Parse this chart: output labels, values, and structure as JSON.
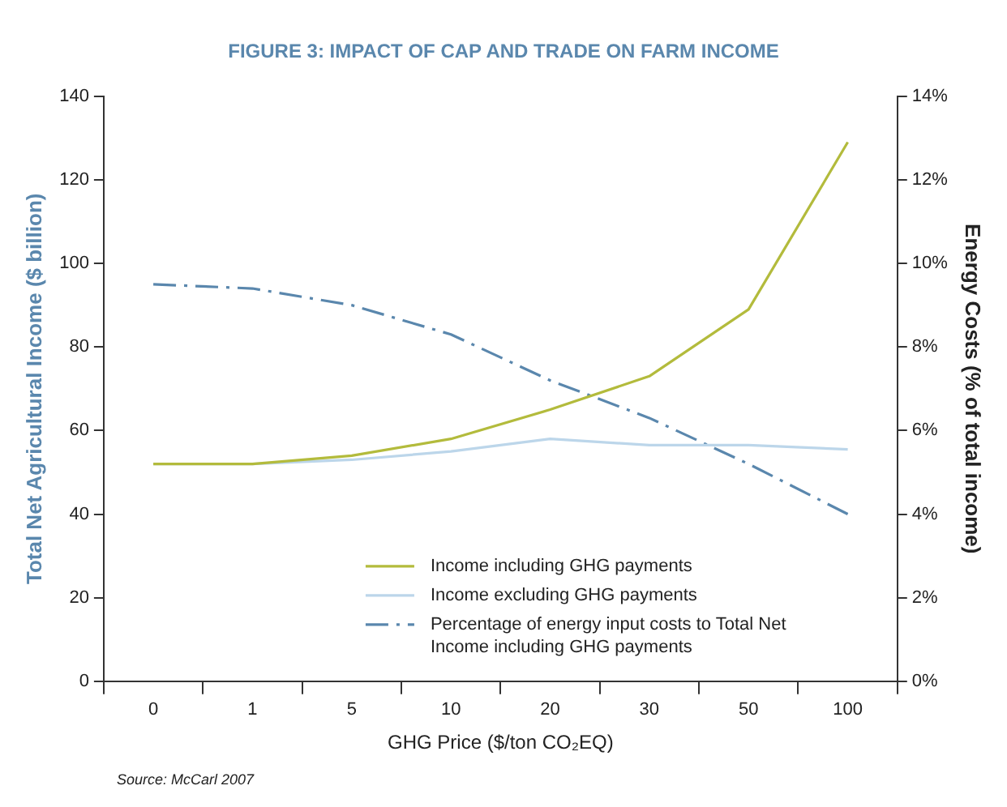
{
  "chart_data": {
    "type": "line",
    "title": "FIGURE 3: IMPACT OF CAP AND TRADE ON FARM INCOME",
    "xlabel": "GHG Price ($/ton CO₂EQ)",
    "ylabel": "Total Net Agricultural Income ($ billion)",
    "y2label": "Energy Costs (% of total income)",
    "categories": [
      "0",
      "1",
      "5",
      "10",
      "20",
      "30",
      "50",
      "100"
    ],
    "series": [
      {
        "name": "Income including GHG payments",
        "color": "#b3bb3c",
        "values": [
          52,
          52,
          54,
          58,
          65,
          73,
          89,
          129
        ]
      },
      {
        "name": "Income excluding GHG payments",
        "color": "#bcd6ea",
        "values": [
          52,
          52,
          53,
          55,
          58,
          56.5,
          56.5,
          55.5
        ]
      },
      {
        "name": "Percentage of energy input costs to Total Net Income including GHG payments",
        "color": "#5a87ad",
        "axis": "y2",
        "line_style": "dashed",
        "values": [
          9.5,
          9.4,
          9.0,
          8.3,
          7.2,
          6.3,
          5.2,
          4.0
        ]
      }
    ],
    "ylim": [
      0,
      140
    ],
    "yticks": [
      0,
      20,
      40,
      60,
      80,
      100,
      120,
      140
    ],
    "y2lim": [
      0,
      14
    ],
    "y2ticks": [
      {
        "value": 0,
        "label": "0%"
      },
      {
        "value": 2,
        "label": "2%"
      },
      {
        "value": 4,
        "label": "4%"
      },
      {
        "value": 6,
        "label": "6%"
      },
      {
        "value": 8,
        "label": "8%"
      },
      {
        "value": 10,
        "label": "10%"
      },
      {
        "value": 12,
        "label": "12%"
      },
      {
        "value": 14,
        "label": "14%"
      }
    ],
    "grid": false,
    "legend": "bottom",
    "marker": "none",
    "line_style": "solid",
    "annotations": [
      "Source: McCarl 2007"
    ]
  }
}
